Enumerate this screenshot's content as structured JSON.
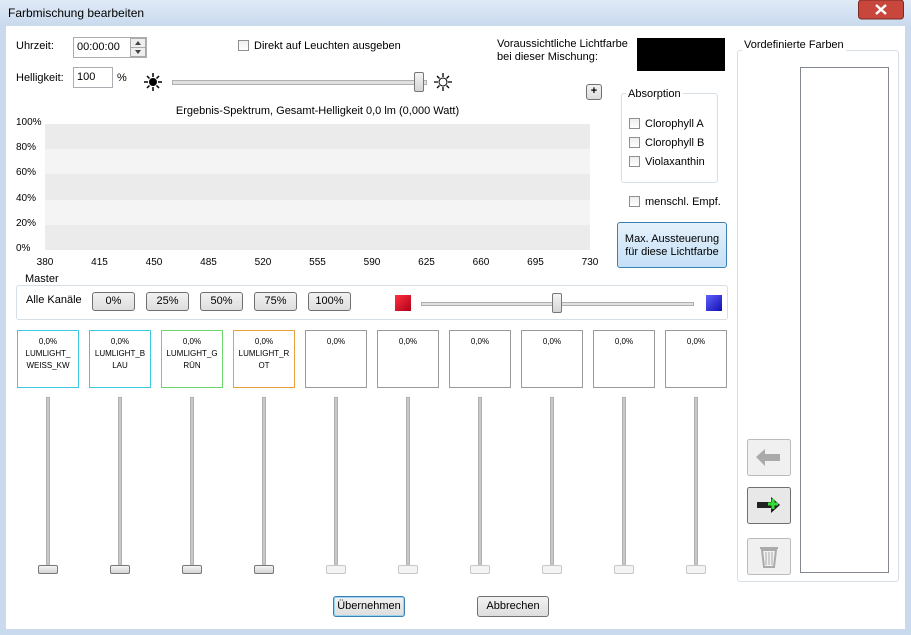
{
  "window": {
    "title": "Farbmischung bearbeiten"
  },
  "time": {
    "label": "Uhrzeit:",
    "value": "00:00:00"
  },
  "direct_output": {
    "label": "Direkt auf Leuchten ausgeben"
  },
  "preview": {
    "lines": [
      "Voraussichtliche Lichtfarbe",
      "bei dieser Mischung:"
    ]
  },
  "brightness": {
    "label": "Helligkeit:",
    "value": "100",
    "unit": "%"
  },
  "plus_button": "+",
  "spectrum": {
    "title": "Ergebnis-Spektrum, Gesamt-Helligkeit 0,0 lm (0,000 Watt)",
    "yticks": [
      "0%",
      "20%",
      "40%",
      "60%",
      "80%",
      "100%"
    ],
    "xticks": [
      "380",
      "415",
      "450",
      "485",
      "520",
      "555",
      "590",
      "625",
      "660",
      "695",
      "730"
    ]
  },
  "absorption": {
    "title": "Absorption",
    "options": [
      "Clorophyll A",
      "Clorophyll B",
      "Violaxanthin"
    ]
  },
  "human_sensitivity": {
    "label": "menschl. Empf."
  },
  "max_button": {
    "lines": [
      "Max. Aussteuerung",
      "für diese Lichtfarbe"
    ]
  },
  "master": {
    "title": "Master",
    "label": "Alle Kanäle",
    "buttons": [
      "0%",
      "25%",
      "50%",
      "75%",
      "100%"
    ]
  },
  "channels": [
    {
      "value": "0,0%",
      "name": "LUMLIGHT_WEISS_KW",
      "color": "#3cc8e0"
    },
    {
      "value": "0,0%",
      "name": "LUMLIGHT_BLAU",
      "color": "#3cc8e0"
    },
    {
      "value": "0,0%",
      "name": "LUMLIGHT_GRÜN",
      "color": "#6ed66e"
    },
    {
      "value": "0,0%",
      "name": "LUMLIGHT_ROT",
      "color": "#e8a040"
    },
    {
      "value": "0,0%"
    },
    {
      "value": "0,0%"
    },
    {
      "value": "0,0%"
    },
    {
      "value": "0,0%"
    },
    {
      "value": "0,0%"
    },
    {
      "value": "0,0%"
    }
  ],
  "predefined": {
    "title": "Vordefinierte Farben"
  },
  "buttons": {
    "apply": "Übernehmen",
    "cancel": "Abbrechen"
  }
}
